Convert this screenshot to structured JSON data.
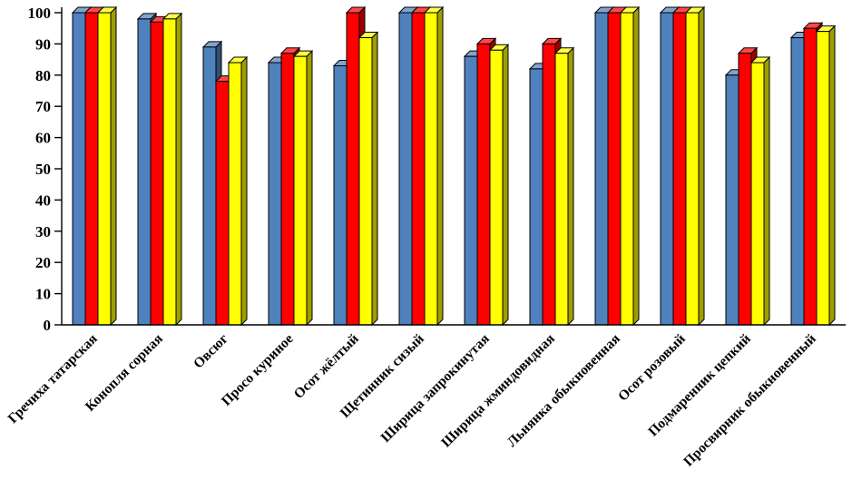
{
  "chart_data": {
    "type": "bar",
    "title": "",
    "xlabel": "",
    "ylabel": "",
    "ylim": [
      0,
      100
    ],
    "ytick_step": 10,
    "grid": false,
    "legend": "none",
    "axis_color": "#000000",
    "bar_outline": "#000000",
    "categories": [
      "Гречиха татарская",
      "Конопля сорная",
      "Овсюг",
      "Просо куриное",
      "Осот жёлтый",
      "Щетинник сизый",
      "Ширица запрокинутая",
      "Ширица жминдовидная",
      "Льнянка обыкновенная",
      "Осот розовый",
      "Подмаренник цепкий",
      "Просвирник обыкновенный"
    ],
    "series": [
      {
        "name": "series-blue",
        "color": "#4f81bd",
        "values": [
          100,
          98,
          89,
          84,
          83,
          100,
          86,
          82,
          100,
          100,
          80,
          92
        ]
      },
      {
        "name": "series-red",
        "color": "#fe0000",
        "values": [
          100,
          97,
          78,
          87,
          100,
          100,
          90,
          90,
          100,
          100,
          87,
          95
        ]
      },
      {
        "name": "series-yellow",
        "color": "#ffff00",
        "values": [
          100,
          98,
          84,
          86,
          92,
          100,
          88,
          87,
          100,
          100,
          84,
          94
        ]
      }
    ],
    "ytick_labels": [
      "0",
      "10",
      "20",
      "30",
      "40",
      "50",
      "60",
      "70",
      "80",
      "90",
      "100"
    ]
  }
}
